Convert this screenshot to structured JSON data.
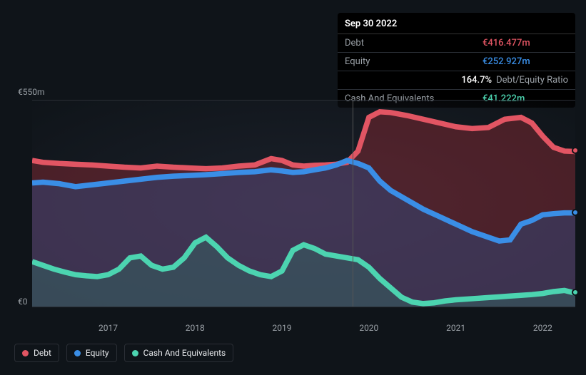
{
  "tooltip": {
    "date": "Sep 30 2022",
    "rows": [
      {
        "label": "Debt",
        "value": "€416.477m",
        "cls": "debt"
      },
      {
        "label": "Equity",
        "value": "€252.927m",
        "cls": "equity"
      },
      {
        "label": "",
        "value": "164.7%",
        "cls": "ratio",
        "extra": "Debt/Equity Ratio"
      },
      {
        "label": "Cash And Equivalents",
        "value": "€41.222m",
        "cls": "cash"
      }
    ]
  },
  "chart": {
    "type": "area",
    "y_max_label": "€550m",
    "y_min_label": "€0",
    "ylim": [
      0,
      550
    ],
    "x_ticks": [
      {
        "label": "2017",
        "pos": 0.14
      },
      {
        "label": "2018",
        "pos": 0.3
      },
      {
        "label": "2019",
        "pos": 0.46
      },
      {
        "label": "2020",
        "pos": 0.62
      },
      {
        "label": "2021",
        "pos": 0.78
      },
      {
        "label": "2022",
        "pos": 0.94
      }
    ],
    "background_color": "#0f1419",
    "grid_color": "#2a2e35",
    "hover_x": 0.59,
    "series": [
      {
        "name": "Debt",
        "color": "#e25563",
        "fill": "rgba(181,48,60,0.35)",
        "line_width": 2.5,
        "end_dot_y": 0.247,
        "points": [
          [
            0.0,
            390
          ],
          [
            0.02,
            385
          ],
          [
            0.05,
            382
          ],
          [
            0.08,
            380
          ],
          [
            0.11,
            378
          ],
          [
            0.14,
            375
          ],
          [
            0.17,
            372
          ],
          [
            0.2,
            370
          ],
          [
            0.23,
            375
          ],
          [
            0.26,
            372
          ],
          [
            0.29,
            370
          ],
          [
            0.32,
            368
          ],
          [
            0.35,
            370
          ],
          [
            0.38,
            375
          ],
          [
            0.41,
            378
          ],
          [
            0.44,
            395
          ],
          [
            0.46,
            390
          ],
          [
            0.48,
            378
          ],
          [
            0.5,
            375
          ],
          [
            0.52,
            377
          ],
          [
            0.54,
            378
          ],
          [
            0.56,
            380
          ],
          [
            0.58,
            385
          ],
          [
            0.6,
            415
          ],
          [
            0.62,
            505
          ],
          [
            0.64,
            520
          ],
          [
            0.66,
            518
          ],
          [
            0.69,
            510
          ],
          [
            0.72,
            500
          ],
          [
            0.75,
            490
          ],
          [
            0.78,
            480
          ],
          [
            0.81,
            475
          ],
          [
            0.84,
            478
          ],
          [
            0.87,
            500
          ],
          [
            0.9,
            505
          ],
          [
            0.92,
            490
          ],
          [
            0.94,
            455
          ],
          [
            0.96,
            425
          ],
          [
            0.98,
            415
          ],
          [
            1.0,
            414
          ]
        ]
      },
      {
        "name": "Equity",
        "color": "#3a8ee6",
        "fill": "rgba(47,75,130,0.45)",
        "line_width": 2.5,
        "end_dot_y": 0.545,
        "points": [
          [
            0.0,
            330
          ],
          [
            0.02,
            332
          ],
          [
            0.05,
            328
          ],
          [
            0.08,
            320
          ],
          [
            0.11,
            325
          ],
          [
            0.14,
            330
          ],
          [
            0.17,
            335
          ],
          [
            0.2,
            340
          ],
          [
            0.23,
            345
          ],
          [
            0.26,
            348
          ],
          [
            0.29,
            350
          ],
          [
            0.32,
            352
          ],
          [
            0.35,
            355
          ],
          [
            0.38,
            358
          ],
          [
            0.41,
            360
          ],
          [
            0.44,
            365
          ],
          [
            0.46,
            362
          ],
          [
            0.48,
            358
          ],
          [
            0.5,
            360
          ],
          [
            0.52,
            365
          ],
          [
            0.54,
            370
          ],
          [
            0.56,
            378
          ],
          [
            0.58,
            390
          ],
          [
            0.6,
            382
          ],
          [
            0.62,
            370
          ],
          [
            0.64,
            335
          ],
          [
            0.66,
            310
          ],
          [
            0.69,
            285
          ],
          [
            0.72,
            260
          ],
          [
            0.75,
            240
          ],
          [
            0.78,
            220
          ],
          [
            0.81,
            200
          ],
          [
            0.84,
            185
          ],
          [
            0.86,
            175
          ],
          [
            0.88,
            178
          ],
          [
            0.9,
            220
          ],
          [
            0.92,
            230
          ],
          [
            0.94,
            245
          ],
          [
            0.96,
            248
          ],
          [
            0.98,
            250
          ],
          [
            1.0,
            250
          ]
        ]
      },
      {
        "name": "Cash And Equivalents",
        "color": "#4cd4b0",
        "fill": "rgba(50,120,105,0.35)",
        "line_width": 2.5,
        "end_dot_y": 0.935,
        "points": [
          [
            0.0,
            120
          ],
          [
            0.02,
            110
          ],
          [
            0.04,
            100
          ],
          [
            0.06,
            92
          ],
          [
            0.08,
            85
          ],
          [
            0.1,
            82
          ],
          [
            0.12,
            80
          ],
          [
            0.14,
            85
          ],
          [
            0.16,
            100
          ],
          [
            0.18,
            130
          ],
          [
            0.2,
            135
          ],
          [
            0.22,
            110
          ],
          [
            0.24,
            100
          ],
          [
            0.26,
            105
          ],
          [
            0.28,
            130
          ],
          [
            0.3,
            170
          ],
          [
            0.32,
            185
          ],
          [
            0.34,
            160
          ],
          [
            0.36,
            130
          ],
          [
            0.38,
            110
          ],
          [
            0.4,
            95
          ],
          [
            0.42,
            85
          ],
          [
            0.44,
            80
          ],
          [
            0.46,
            95
          ],
          [
            0.48,
            150
          ],
          [
            0.5,
            165
          ],
          [
            0.52,
            155
          ],
          [
            0.54,
            140
          ],
          [
            0.56,
            135
          ],
          [
            0.58,
            130
          ],
          [
            0.6,
            125
          ],
          [
            0.62,
            105
          ],
          [
            0.64,
            75
          ],
          [
            0.66,
            50
          ],
          [
            0.68,
            25
          ],
          [
            0.7,
            12
          ],
          [
            0.72,
            8
          ],
          [
            0.74,
            10
          ],
          [
            0.76,
            15
          ],
          [
            0.78,
            18
          ],
          [
            0.8,
            20
          ],
          [
            0.82,
            22
          ],
          [
            0.84,
            24
          ],
          [
            0.86,
            26
          ],
          [
            0.88,
            28
          ],
          [
            0.9,
            30
          ],
          [
            0.92,
            32
          ],
          [
            0.94,
            35
          ],
          [
            0.96,
            40
          ],
          [
            0.98,
            43
          ],
          [
            1.0,
            36
          ]
        ]
      }
    ]
  },
  "legend": [
    {
      "label": "Debt",
      "color": "#e25563"
    },
    {
      "label": "Equity",
      "color": "#3a8ee6"
    },
    {
      "label": "Cash And Equivalents",
      "color": "#4cd4b0"
    }
  ]
}
